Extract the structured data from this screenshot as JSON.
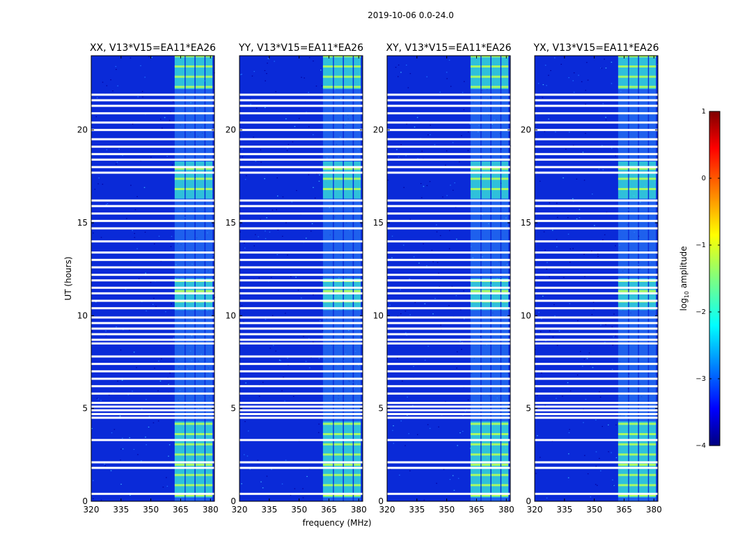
{
  "figure_title": "2019-10-06 0.0-24.0",
  "chart_data": {
    "type": "heatmap",
    "suptitle": "2019-10-06 0.0-24.0",
    "xlabel": "frequency (MHz)",
    "ylabel": "UT (hours)",
    "xlim": [
      320,
      382
    ],
    "ylim": [
      0,
      24
    ],
    "x_ticks": [
      320,
      335,
      350,
      365,
      380
    ],
    "x_tick_labels": [
      "320",
      "335",
      "350",
      "365",
      "380"
    ],
    "y_ticks": [
      0,
      5,
      10,
      15,
      20
    ],
    "y_tick_labels": [
      "0",
      "5",
      "10",
      "15",
      "20"
    ],
    "panels": [
      {
        "title": "XX, V13*V15=EA11*EA26"
      },
      {
        "title": "YY, V13*V15=EA11*EA26"
      },
      {
        "title": "XY, V13*V15=EA11*EA26"
      },
      {
        "title": "YX, V13*V15=EA11*EA26"
      }
    ],
    "colorbar": {
      "label_main": "log",
      "label_sub": "10",
      "label_rest": " amplitude",
      "range": [
        -4,
        1
      ],
      "ticks": [
        1,
        0,
        -1,
        -2,
        -3,
        -4
      ],
      "tick_labels": [
        "1",
        "0",
        "−1",
        "−2",
        "−3",
        "−4"
      ],
      "colormap": "jet"
    },
    "flagged_ut_hours": [
      0.4,
      1.8,
      2.1,
      3.3,
      4.5,
      4.7,
      4.9,
      5.1,
      5.3,
      5.8,
      6.2,
      6.6,
      7.0,
      7.4,
      7.8,
      8.5,
      8.7,
      9.0,
      9.3,
      9.6,
      9.9,
      10.4,
      10.8,
      11.2,
      11.5,
      11.9,
      12.2,
      12.6,
      13.0,
      13.4,
      14.0,
      14.7,
      15.1,
      15.5,
      15.9,
      16.2,
      17.7,
      18.0,
      18.4,
      18.7,
      19.1,
      19.5,
      20.0,
      20.4,
      20.9,
      21.3,
      21.6,
      21.9
    ],
    "rfi_bands_mhz": [
      [
        362,
        367
      ],
      [
        367.5,
        372
      ],
      [
        372.5,
        377
      ],
      [
        377.5,
        381
      ]
    ],
    "rfi_active_ut": [
      [
        0.2,
        4.3
      ],
      [
        16.3,
        18.3
      ],
      [
        10.3,
        12.0
      ],
      [
        22.2,
        24.0
      ]
    ]
  }
}
